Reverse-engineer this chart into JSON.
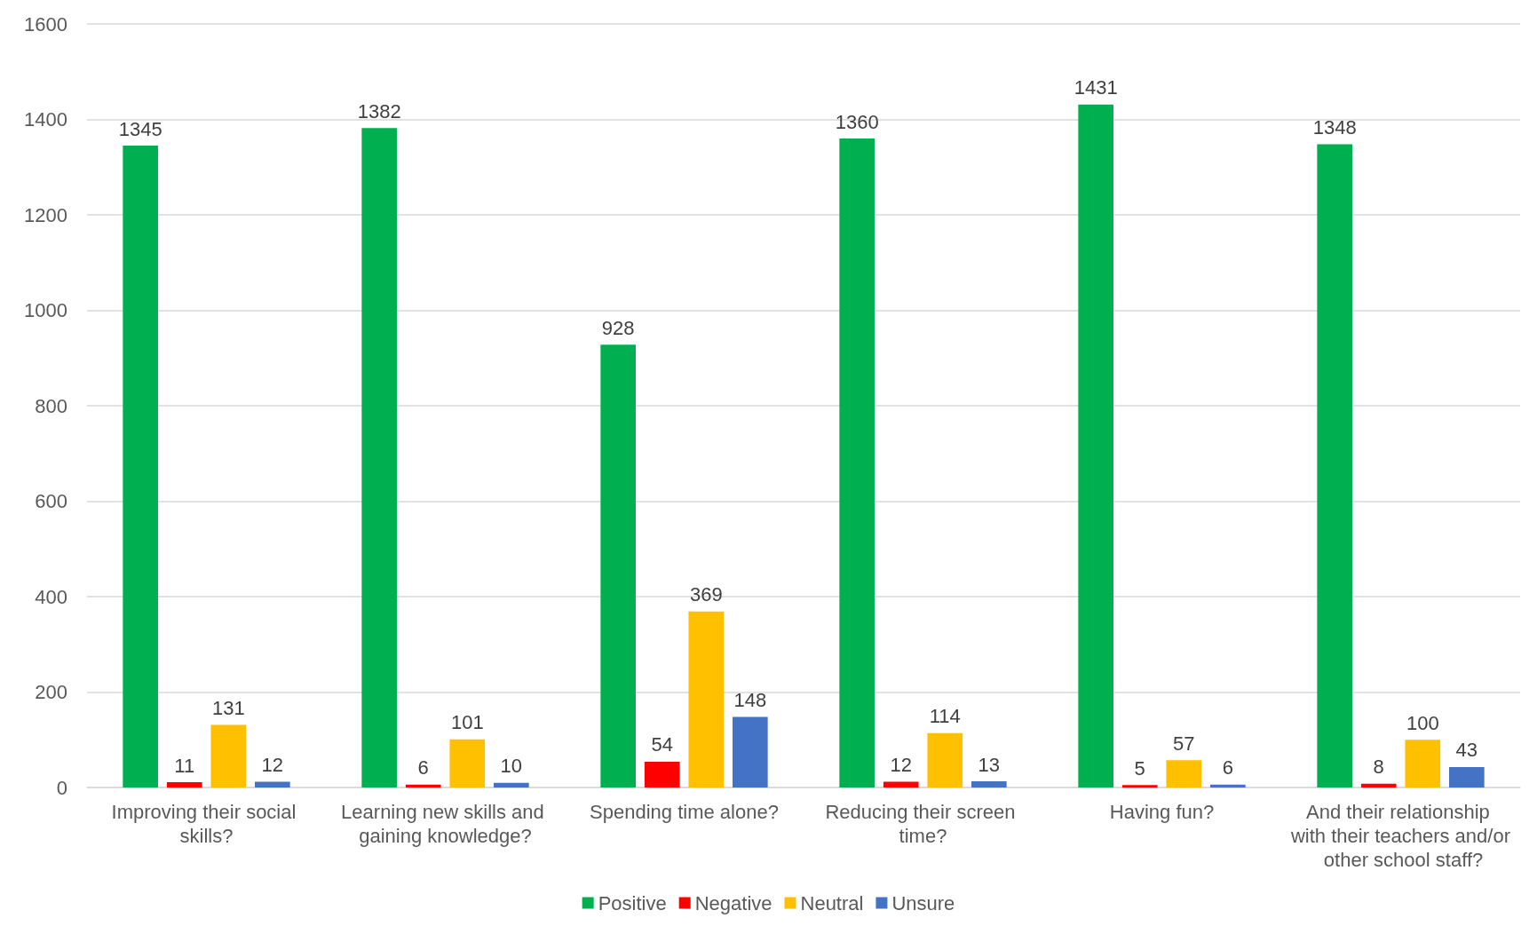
{
  "chart_data": {
    "type": "bar",
    "categories": [
      "Improving their social skills?",
      "Learning new skills and gaining knowledge?",
      "Spending time alone?",
      "Reducing their screen time?",
      "Having fun?",
      "And their relationship with their teachers and/or other school staff?"
    ],
    "series": [
      {
        "name": "Positive",
        "color": "#00b050",
        "values": [
          1345,
          1382,
          928,
          1360,
          1431,
          1348
        ]
      },
      {
        "name": "Negative",
        "color": "#ff0000",
        "values": [
          11,
          6,
          54,
          12,
          5,
          8
        ]
      },
      {
        "name": "Neutral",
        "color": "#ffc000",
        "values": [
          131,
          101,
          369,
          114,
          57,
          100
        ]
      },
      {
        "name": "Unsure",
        "color": "#4472c4",
        "values": [
          12,
          10,
          148,
          13,
          6,
          43
        ]
      }
    ],
    "ylim": [
      0,
      1600
    ],
    "yticks": [
      0,
      200,
      400,
      600,
      800,
      1000,
      1200,
      1400,
      1600
    ],
    "grid": "y",
    "legend": "bottom",
    "data_labels": true
  }
}
